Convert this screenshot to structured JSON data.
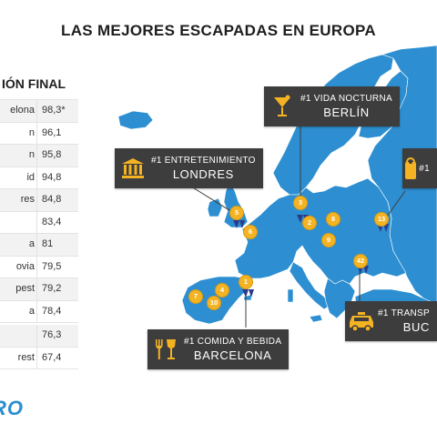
{
  "title": "LAS MEJORES ESCAPADAS EN EUROPA",
  "ranking_title": "CLASIFICACIÓN FINAL",
  "ranking_visible_title": "IÓN FINAL",
  "ranking": [
    {
      "name": "elona",
      "score": "98,3*"
    },
    {
      "name": "n",
      "score": "96,1"
    },
    {
      "name": "n",
      "score": "95,8"
    },
    {
      "name": "id",
      "score": "94,8"
    },
    {
      "name": "res",
      "score": "84,8"
    },
    {
      "name": "",
      "score": "83,4"
    },
    {
      "name": "a",
      "score": "81"
    },
    {
      "name": "ovia",
      "score": "79,5"
    },
    {
      "name": "pest",
      "score": "79,2"
    },
    {
      "name": "a",
      "score": "78,4"
    },
    {
      "name": "",
      "score": "76,3"
    },
    {
      "name": "rest",
      "score": "67,4"
    }
  ],
  "logo_text": "RO",
  "callouts": {
    "nightlife": {
      "category": "#1 VIDA NOCTURNA",
      "city": "BERLÍN",
      "icon": "cocktail-icon"
    },
    "entertainment": {
      "category": "#1 ENTRETENIMIENTO",
      "city": "LONDRES",
      "icon": "museum-icon"
    },
    "hotel": {
      "category": "#1",
      "city": "",
      "icon": "door-hanger-icon"
    },
    "transport": {
      "category": "#1 TRANSP",
      "city": "BUC",
      "icon": "taxi-icon"
    },
    "food": {
      "category": "#1 COMIDA Y BEBIDA",
      "city": "BARCELONA",
      "icon": "fork-glass-icon"
    }
  },
  "pins": [
    {
      "label": "1",
      "ribbon": true
    },
    {
      "label": "2",
      "ribbon": false
    },
    {
      "label": "3",
      "ribbon": true
    },
    {
      "label": "4",
      "ribbon": false
    },
    {
      "label": "5",
      "ribbon": true
    },
    {
      "label": "6",
      "ribbon": false
    },
    {
      "label": "7",
      "ribbon": false
    },
    {
      "label": "8",
      "ribbon": false
    },
    {
      "label": "9",
      "ribbon": false
    },
    {
      "label": "10",
      "ribbon": false
    },
    {
      "label": "13",
      "ribbon": true
    },
    {
      "label": "42",
      "ribbon": true
    }
  ],
  "colors": {
    "land": "#2d8fd1",
    "callout_bg": "#3d3d3d",
    "icon_gold": "#f4b323",
    "ribbon": "#2a3c8a"
  }
}
